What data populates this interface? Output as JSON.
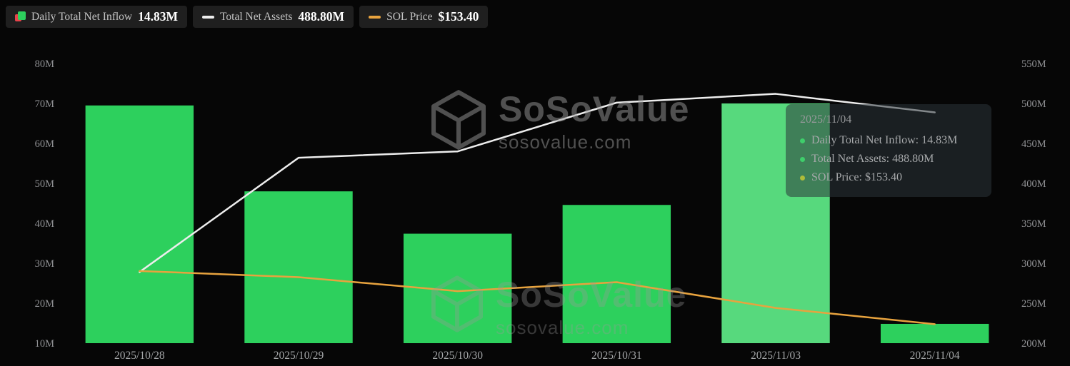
{
  "legend": {
    "items": [
      {
        "label": "Daily Total Net Inflow",
        "value": "14.83M"
      },
      {
        "label": "Total Net Assets",
        "value": "488.80M"
      },
      {
        "label": "SOL Price",
        "value": "$153.40"
      }
    ]
  },
  "tooltip": {
    "date": "2025/11/04",
    "rows": [
      {
        "text": "Daily Total Net Inflow: 14.83M",
        "dot_color": "#3fce6b"
      },
      {
        "text": "Total Net Assets: 488.80M",
        "dot_color": "#3fce6b"
      },
      {
        "text": "SOL Price: $153.40",
        "dot_color": "#aebc3a"
      }
    ]
  },
  "watermark": {
    "brand": "SoSoValue",
    "domain": "sosovalue.com"
  },
  "colors": {
    "background": "#060606",
    "bar_green": "#2dd05d",
    "legend_red": "#e8434a",
    "assets_line": "#ededed",
    "sol_line": "#e8a33e",
    "axis_text": "#8f9093",
    "highlight_overlay": "#ffffff"
  },
  "chart_data": {
    "type": "bar",
    "subtype": "combo-bar-line",
    "title": "",
    "categories": [
      "2025/10/28",
      "2025/10/29",
      "2025/10/30",
      "2025/10/31",
      "2025/11/03",
      "2025/11/04"
    ],
    "series": [
      {
        "name": "Daily Total Net Inflow",
        "kind": "bar",
        "axis": "left",
        "unit": "M",
        "color": "#2dd05d",
        "values": [
          69.5,
          48.0,
          37.4,
          44.6,
          70.0,
          14.83
        ]
      },
      {
        "name": "Total Net Assets",
        "kind": "line",
        "axis": "right",
        "unit": "M",
        "color": "#ededed",
        "values": [
          289,
          432,
          440,
          501,
          512,
          488.8
        ]
      },
      {
        "name": "SOL Price",
        "kind": "line",
        "axis": "hidden",
        "unit": "USD",
        "color": "#e8a33e",
        "axis_range": [
          150,
          200
        ],
        "values": [
          162.9,
          161.8,
          159.3,
          160.9,
          156.3,
          153.4
        ]
      }
    ],
    "left_axis": {
      "min": 10,
      "max": 80,
      "ticks": [
        "80M",
        "70M",
        "60M",
        "50M",
        "40M",
        "30M",
        "20M",
        "10M"
      ]
    },
    "right_axis": {
      "min": 200,
      "max": 550,
      "ticks": [
        "550M",
        "500M",
        "450M",
        "400M",
        "350M",
        "300M",
        "250M",
        "200M"
      ]
    },
    "grid": false,
    "legend_position": "top-left",
    "highlight_index": 4
  }
}
